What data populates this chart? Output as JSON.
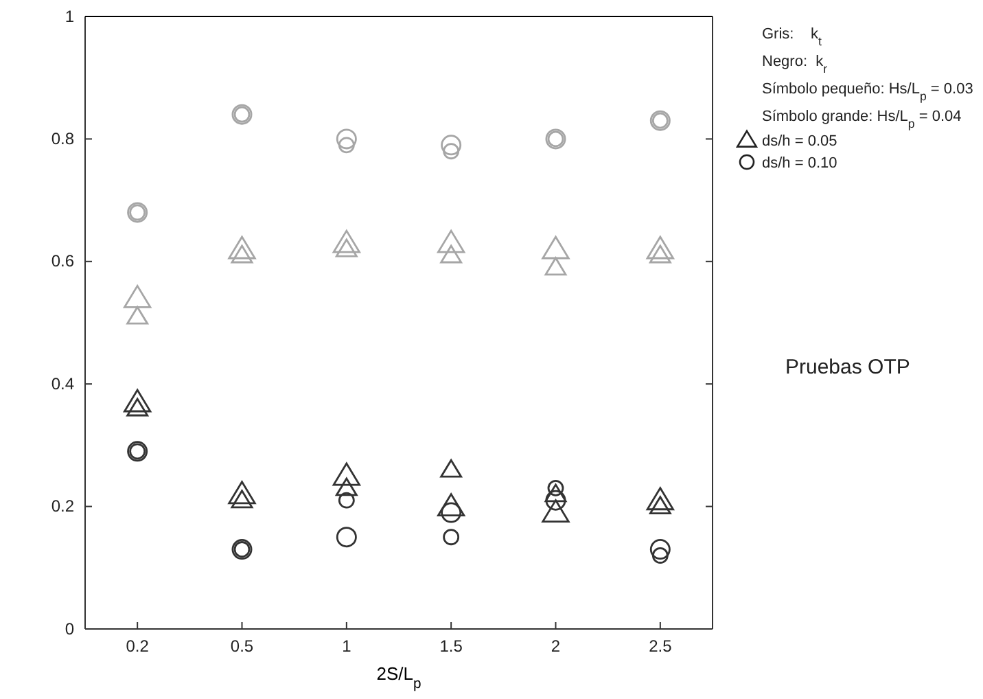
{
  "chart_data": {
    "type": "scatter",
    "xlabel": "2S/L$_{p}$",
    "categories": [
      "0.2",
      "0.5",
      "1",
      "1.5",
      "2",
      "2.5"
    ],
    "ylim": [
      0,
      1
    ],
    "yticks": [
      0,
      0.2,
      0.4,
      0.6,
      0.8,
      1
    ],
    "grid": false,
    "series": [
      {
        "color": "#a6a6a6",
        "marker": "circle",
        "sizes": [
          1,
          1,
          1,
          1,
          1,
          1
        ],
        "values": [
          0.68,
          0.84,
          0.8,
          0.79,
          0.8,
          0.83
        ]
      },
      {
        "color": "#a6a6a6",
        "marker": "circle",
        "sizes": [
          0.6,
          0.6,
          0.6,
          0.6,
          0.6,
          0.6
        ],
        "values": [
          0.68,
          0.84,
          0.79,
          0.78,
          0.8,
          0.83
        ]
      },
      {
        "color": "#a6a6a6",
        "marker": "triangle",
        "sizes": [
          1,
          1,
          1,
          1,
          1,
          1
        ],
        "values": [
          0.54,
          0.62,
          0.63,
          0.63,
          0.62,
          0.62
        ]
      },
      {
        "color": "#a6a6a6",
        "marker": "triangle",
        "sizes": [
          0.6,
          0.6,
          0.6,
          0.6,
          0.6,
          0.6
        ],
        "values": [
          0.51,
          0.61,
          0.62,
          0.61,
          0.59,
          0.61
        ]
      },
      {
        "color": "#333333",
        "marker": "triangle",
        "sizes": [
          1,
          1,
          1,
          1,
          1,
          1
        ],
        "values": [
          0.37,
          0.22,
          0.25,
          0.2,
          0.19,
          0.21
        ]
      },
      {
        "color": "#333333",
        "marker": "triangle",
        "sizes": [
          0.6,
          0.6,
          0.6,
          0.6,
          0.6,
          0.6
        ],
        "values": [
          0.36,
          0.21,
          0.23,
          0.26,
          0.22,
          0.2
        ]
      },
      {
        "color": "#333333",
        "marker": "circle",
        "sizes": [
          1,
          1,
          1,
          1,
          1,
          1
        ],
        "values": [
          0.29,
          0.13,
          0.15,
          0.19,
          0.21,
          0.13
        ]
      },
      {
        "color": "#333333",
        "marker": "circle",
        "sizes": [
          0.6,
          0.6,
          0.6,
          0.6,
          0.6,
          0.6
        ],
        "values": [
          0.29,
          0.13,
          0.21,
          0.15,
          0.23,
          0.12
        ]
      }
    ],
    "annotations": [
      "Gris:    k$_{t}$",
      "Negro:  k$_{r}$",
      "Símbolo pequeño: Hs/L$_{p}$ = 0.03",
      "Símbolo grande: Hs/L$_{p}$ = 0.04",
      "ds/h = 0.05",
      "ds/h = 0.10",
      "Pruebas OTP"
    ]
  }
}
